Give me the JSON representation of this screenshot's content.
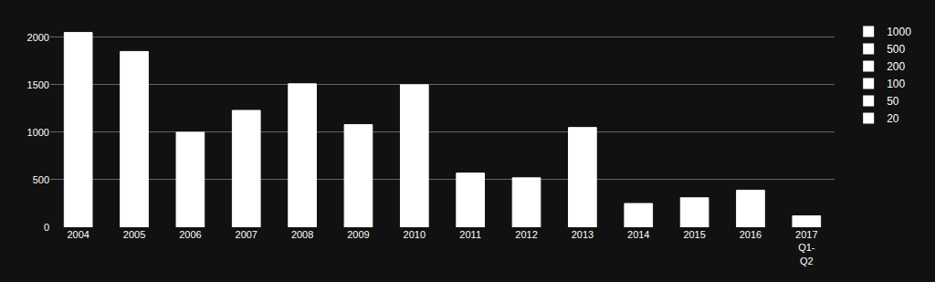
{
  "chart_data": {
    "type": "bar",
    "categories": [
      "2004",
      "2005",
      "2006",
      "2007",
      "2008",
      "2009",
      "2010",
      "2011",
      "2012",
      "2013",
      "2014",
      "2015",
      "2016",
      "2017\nQ1-\nQ2"
    ],
    "values": [
      2050,
      1850,
      1000,
      1230,
      1510,
      1080,
      1500,
      570,
      520,
      1050,
      250,
      310,
      390,
      120
    ],
    "color": "#ffffff",
    "ylim": [
      0,
      2200
    ],
    "yticks": [
      0,
      500,
      1000,
      1500,
      2000
    ],
    "grid": true,
    "legend": "upper right",
    "legend_labels": [
      "1000",
      "500",
      "200",
      "100",
      "50",
      "20"
    ]
  }
}
